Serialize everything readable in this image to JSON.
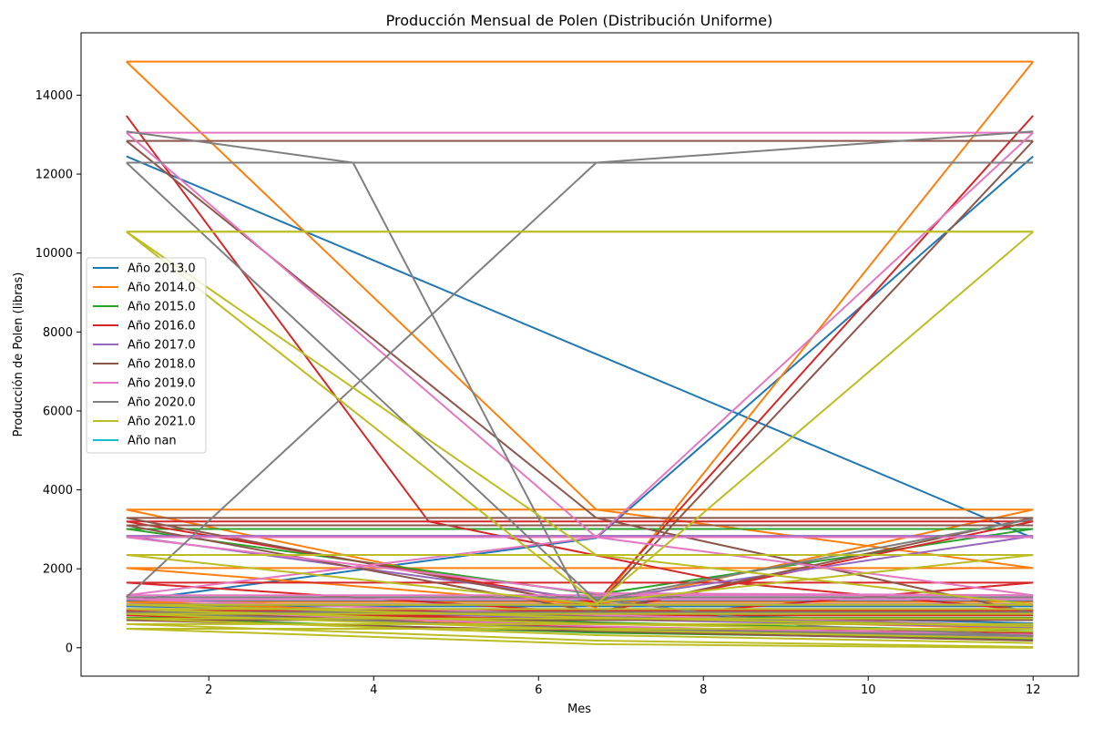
{
  "chart_data": {
    "type": "line",
    "title": "Producción Mensual de Polen (Distribución Uniforme)",
    "xlabel": "Mes",
    "ylabel": "Producción de Polen (libras)",
    "xlim": [
      0.45,
      12.55
    ],
    "ylim": [
      -720,
      15580
    ],
    "xticks": [
      2,
      4,
      6,
      8,
      10,
      12
    ],
    "yticks": [
      0,
      2000,
      4000,
      6000,
      8000,
      10000,
      12000,
      14000
    ],
    "grid": false,
    "legend_position": "center-left",
    "series": [
      {
        "name": "Año 2013.0",
        "color": "#1f77b4",
        "groups": [
          [
            12450,
            2780
          ],
          [
            1180,
            2780,
            12450
          ],
          [
            1050,
            880,
            620
          ],
          [
            940,
            460,
            310
          ]
        ]
      },
      {
        "name": "Año 2014.0",
        "color": "#ff7f0e",
        "groups": [
          [
            14850,
            3500,
            2020
          ],
          [
            3500,
            1020,
            14850
          ],
          [
            2020,
            1080,
            3500
          ],
          [
            1160,
            760,
            480
          ],
          [
            880,
            520,
            300
          ]
        ]
      },
      {
        "name": "Año 2015.0",
        "color": "#2ca02c",
        "groups": [
          [
            3010
          ],
          [
            3010,
            1350,
            3010
          ],
          [
            980,
            640,
            420
          ],
          [
            760,
            380,
            220
          ]
        ]
      },
      {
        "name": "Año 2016.0",
        "color": "#d62728",
        "groups": [
          [
            13480,
            3200,
            1650,
            940
          ],
          [
            3200,
            1150,
            13480
          ],
          [
            1650,
            880,
            3200
          ],
          [
            940,
            700,
            1650
          ],
          [
            820,
            520,
            360
          ]
        ]
      },
      {
        "name": "Año 2017.0",
        "color": "#9467bd",
        "groups": [
          [
            2830
          ],
          [
            2830,
            1200,
            2830
          ],
          [
            1100,
            720,
            520
          ],
          [
            860,
            470,
            250
          ]
        ]
      },
      {
        "name": "Año 2018.0",
        "color": "#8c564b",
        "groups": [
          [
            12840,
            3290,
            880
          ],
          [
            3290,
            1050,
            12840
          ],
          [
            3100,
            900,
            3290
          ],
          [
            880,
            610,
            400
          ],
          [
            700,
            420,
            180
          ]
        ]
      },
      {
        "name": "Año 2019.0",
        "color": "#e377c2",
        "groups": [
          [
            13050,
            2800,
            1330
          ],
          [
            1330,
            2800,
            13050
          ],
          [
            2800,
            1380,
            1330
          ],
          [
            1230,
            830,
            560
          ],
          [
            980,
            540,
            330
          ]
        ]
      },
      {
        "name": "Año 2020.0",
        "color": "#7f7f7f",
        "groups": [
          [
            13080,
            12290,
            1280,
            560,
            300
          ],
          [
            1280,
            12290,
            13080
          ],
          [
            12290,
            1200,
            3260
          ],
          [
            1080,
            780,
            560
          ],
          [
            900,
            480,
            300
          ]
        ]
      },
      {
        "name": "Año 2021.0",
        "color": "#bcbd22",
        "groups": [
          [
            10540,
            2350,
            1090
          ],
          [
            2350,
            1100,
            10540
          ],
          [
            10540,
            1150,
            2350
          ],
          [
            1090,
            760,
            540
          ],
          [
            980,
            600,
            410
          ],
          [
            860,
            450,
            240
          ],
          [
            740,
            320,
            120
          ],
          [
            600,
            180,
            20
          ],
          [
            480,
            90,
            0
          ]
        ]
      },
      {
        "name": "Año nan",
        "color": "#17becf",
        "groups": []
      }
    ]
  }
}
